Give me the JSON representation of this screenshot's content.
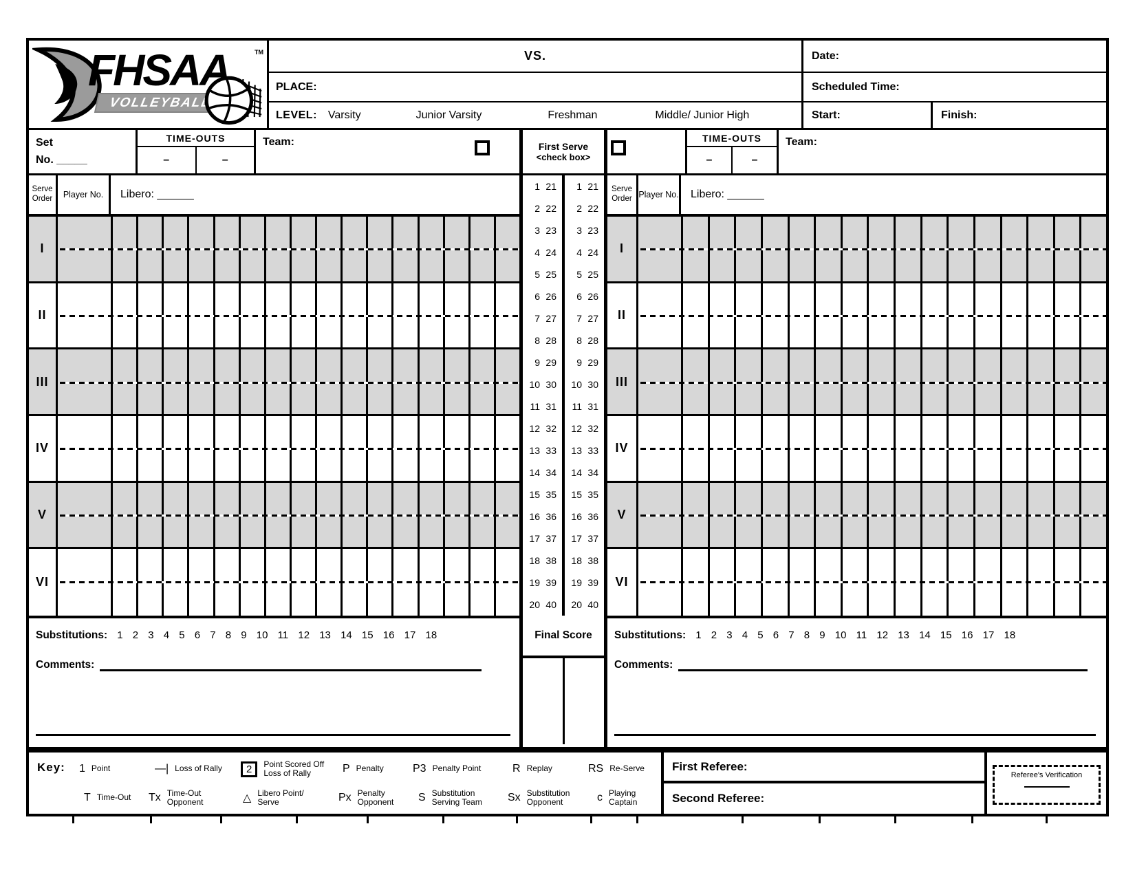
{
  "logo": {
    "org": "FHSAA",
    "sport": "VOLLEYBALL",
    "tm": "TM"
  },
  "header": {
    "vs": "VS.",
    "place": "PLACE:",
    "level": "LEVEL:",
    "levels": [
      "Varsity",
      "Junior Varsity",
      "Freshman",
      "Middle/ Junior High"
    ],
    "date": "Date:",
    "scheduled_time": "Scheduled Time:",
    "start": "Start:",
    "finish": "Finish:"
  },
  "team_panel": {
    "set": "Set\nNo. _____",
    "timeouts": "TIME-OUTS",
    "timeout_slot": "–",
    "team": "Team:",
    "serve_order": "Serve\nOrder",
    "player_no": "Player No.",
    "libero": "Libero: ______",
    "substitutions": "Substitutions:",
    "substitution_numbers": "1 2 3 4 5 6 7 8 9 10 11 12 13 14 15 16 17 18",
    "comments": "Comments:"
  },
  "serve_rows": [
    "I",
    "II",
    "III",
    "IV",
    "V",
    "VI"
  ],
  "first_serve": {
    "title": "First Serve",
    "subtitle": "<check box>",
    "pairs": [
      [
        "1",
        "21"
      ],
      [
        "2",
        "22"
      ],
      [
        "3",
        "23"
      ],
      [
        "4",
        "24"
      ],
      [
        "5",
        "25"
      ],
      [
        "6",
        "26"
      ],
      [
        "7",
        "27"
      ],
      [
        "8",
        "28"
      ],
      [
        "9",
        "29"
      ],
      [
        "10",
        "30"
      ],
      [
        "11",
        "31"
      ],
      [
        "12",
        "32"
      ],
      [
        "13",
        "33"
      ],
      [
        "14",
        "34"
      ],
      [
        "15",
        "35"
      ],
      [
        "16",
        "36"
      ],
      [
        "17",
        "37"
      ],
      [
        "18",
        "38"
      ],
      [
        "19",
        "39"
      ],
      [
        "20",
        "40"
      ]
    ]
  },
  "final_score": "Final Score",
  "key": {
    "label": "Key:",
    "row1": [
      {
        "symbol": "1",
        "label": "Point"
      },
      {
        "symbol": "—|",
        "label": "Loss of Rally"
      },
      {
        "symbol": "2",
        "label": "Point Scored Off\nLoss of Rally",
        "boxed": true
      },
      {
        "symbol": "P",
        "label": "Penalty"
      },
      {
        "symbol": "P3",
        "label": "Penalty Point"
      },
      {
        "symbol": "R",
        "label": "Replay"
      },
      {
        "symbol": "RS",
        "label": "Re-Serve"
      }
    ],
    "row2": [
      {
        "symbol": "T",
        "label": "Time-Out"
      },
      {
        "symbol": "Tx",
        "label": "Time-Out\nOpponent"
      },
      {
        "symbol": "△",
        "label": "Libero Point/\nServe"
      },
      {
        "symbol": "Px",
        "label": "Penalty\nOpponent"
      },
      {
        "symbol": "S",
        "label": "Substitution\nServing Team"
      },
      {
        "symbol": "Sx",
        "label": "Substitution\nOpponent"
      },
      {
        "symbol": "c",
        "label": "Playing\nCaptain"
      }
    ]
  },
  "referees": {
    "first": "First Referee:",
    "second": "Second Referee:",
    "verification": "Referee's Verification"
  },
  "colors": {
    "row_shade": "#d7d7d7",
    "ink": "#000000",
    "logo_gray": "#9b9b9b"
  }
}
